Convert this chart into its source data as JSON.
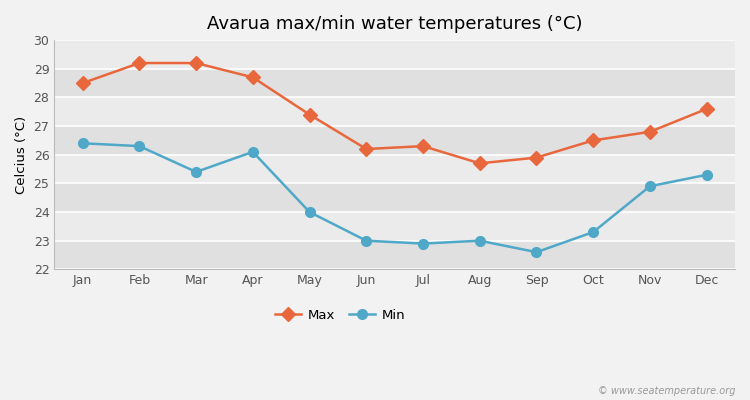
{
  "title": "Avarua max/min water temperatures (°C)",
  "ylabel": "Celcius (°C)",
  "months": [
    "Jan",
    "Feb",
    "Mar",
    "Apr",
    "May",
    "Jun",
    "Jul",
    "Aug",
    "Sep",
    "Oct",
    "Nov",
    "Dec"
  ],
  "max_temps": [
    28.5,
    29.2,
    29.2,
    28.7,
    27.4,
    26.2,
    26.3,
    25.7,
    25.9,
    26.5,
    26.8,
    27.6
  ],
  "min_temps": [
    26.4,
    26.3,
    25.4,
    26.1,
    24.0,
    23.0,
    22.9,
    23.0,
    22.6,
    23.3,
    24.9,
    25.3
  ],
  "max_color": "#E8673C",
  "min_color": "#4fa8c8",
  "bg_color": "#f2f2f2",
  "plot_bg_color_light": "#ebebeb",
  "plot_bg_color_dark": "#e0e0e0",
  "ylim": [
    22,
    30
  ],
  "yticks": [
    22,
    23,
    24,
    25,
    26,
    27,
    28,
    29,
    30
  ],
  "grid_color": "#ffffff",
  "legend_labels": [
    "Max",
    "Min"
  ],
  "watermark": "© www.seatemperature.org",
  "title_fontsize": 13,
  "label_fontsize": 9.5,
  "tick_fontsize": 9
}
